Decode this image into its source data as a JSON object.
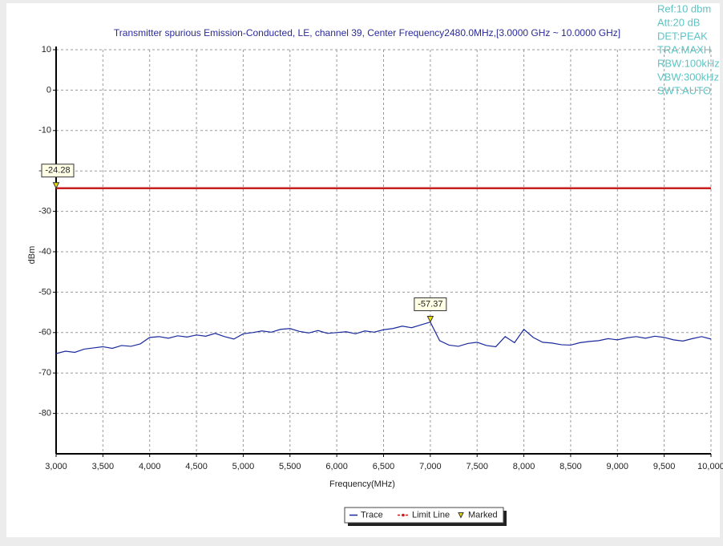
{
  "chart_data": {
    "type": "line",
    "title": "Transmitter spurious Emission-Conducted, LE, channel 39, Center Frequency2480.0MHz,[3.0000 GHz ~ 10.0000 GHz]",
    "info": [
      "Ref:10 dbm",
      "Att:20 dB",
      "DET:PEAK",
      "TRA:MAXH",
      "RBW:100kHz",
      "VBW:300kHz",
      "SWT:AUTO"
    ],
    "xlabel": "Frequency(MHz)",
    "ylabel": "dBm",
    "xlim": [
      3000,
      10000
    ],
    "xticks": [
      {
        "value": 3000,
        "label": "3,000"
      },
      {
        "value": 3500,
        "label": "3,500"
      },
      {
        "value": 4000,
        "label": "4,000"
      },
      {
        "value": 4500,
        "label": "4,500"
      },
      {
        "value": 5000,
        "label": "5,000"
      },
      {
        "value": 5500,
        "label": "5,500"
      },
      {
        "value": 6000,
        "label": "6,000"
      },
      {
        "value": 6500,
        "label": "6,500"
      },
      {
        "value": 7000,
        "label": "7,000"
      },
      {
        "value": 7500,
        "label": "7,500"
      },
      {
        "value": 8000,
        "label": "8,000"
      },
      {
        "value": 8500,
        "label": "8,500"
      },
      {
        "value": 9000,
        "label": "9,000"
      },
      {
        "value": 9500,
        "label": "9,500"
      },
      {
        "value": 10000,
        "label": "10,000"
      }
    ],
    "ylim": [
      -90,
      10
    ],
    "yticks": [
      10,
      0,
      -10,
      -20,
      -30,
      -40,
      -50,
      -60,
      -70,
      -80
    ],
    "grid": true,
    "series": [
      {
        "name": "Trace",
        "color": "#1a2a9c",
        "x": [
          3000,
          3100,
          3200,
          3300,
          3400,
          3500,
          3600,
          3700,
          3800,
          3900,
          4000,
          4100,
          4200,
          4300,
          4400,
          4500,
          4600,
          4700,
          4800,
          4900,
          5000,
          5100,
          5200,
          5300,
          5400,
          5500,
          5600,
          5700,
          5800,
          5900,
          6000,
          6100,
          6200,
          6300,
          6400,
          6500,
          6600,
          6700,
          6800,
          6900,
          7000,
          7100,
          7200,
          7300,
          7400,
          7500,
          7600,
          7700,
          7800,
          7900,
          8000,
          8100,
          8200,
          8300,
          8400,
          8500,
          8600,
          8700,
          8800,
          8900,
          9000,
          9100,
          9200,
          9300,
          9400,
          9500,
          9600,
          9700,
          9800,
          9900,
          10000
        ],
        "values": [
          -65.2,
          -64.6,
          -64.9,
          -64.1,
          -63.8,
          -63.5,
          -63.9,
          -63.2,
          -63.4,
          -62.8,
          -61.2,
          -61.0,
          -61.4,
          -60.8,
          -61.1,
          -60.6,
          -60.9,
          -60.2,
          -61.0,
          -61.6,
          -60.3,
          -60.0,
          -59.6,
          -59.9,
          -59.2,
          -59.0,
          -59.7,
          -60.1,
          -59.5,
          -60.2,
          -60.0,
          -59.8,
          -60.3,
          -59.6,
          -59.9,
          -59.3,
          -59.0,
          -58.4,
          -58.8,
          -58.1,
          -57.4,
          -62.0,
          -63.1,
          -63.4,
          -62.7,
          -62.4,
          -63.2,
          -63.5,
          -61.0,
          -62.5,
          -59.2,
          -61.2,
          -62.4,
          -62.6,
          -63.0,
          -63.1,
          -62.5,
          -62.2,
          -62.0,
          -61.5,
          -61.8,
          -61.3,
          -61.0,
          -61.4,
          -60.9,
          -61.2,
          -61.8,
          -62.1,
          -61.5,
          -61.0,
          -61.6
        ]
      },
      {
        "name": "Limit Line",
        "color": "#c8201e",
        "x": [
          3000,
          10000
        ],
        "values": [
          -24.28,
          -24.28
        ]
      },
      {
        "name": "Marked",
        "color": "#e8e000",
        "x": [
          3000,
          7000
        ],
        "values": [
          -24.28,
          -57.37
        ]
      }
    ]
  }
}
